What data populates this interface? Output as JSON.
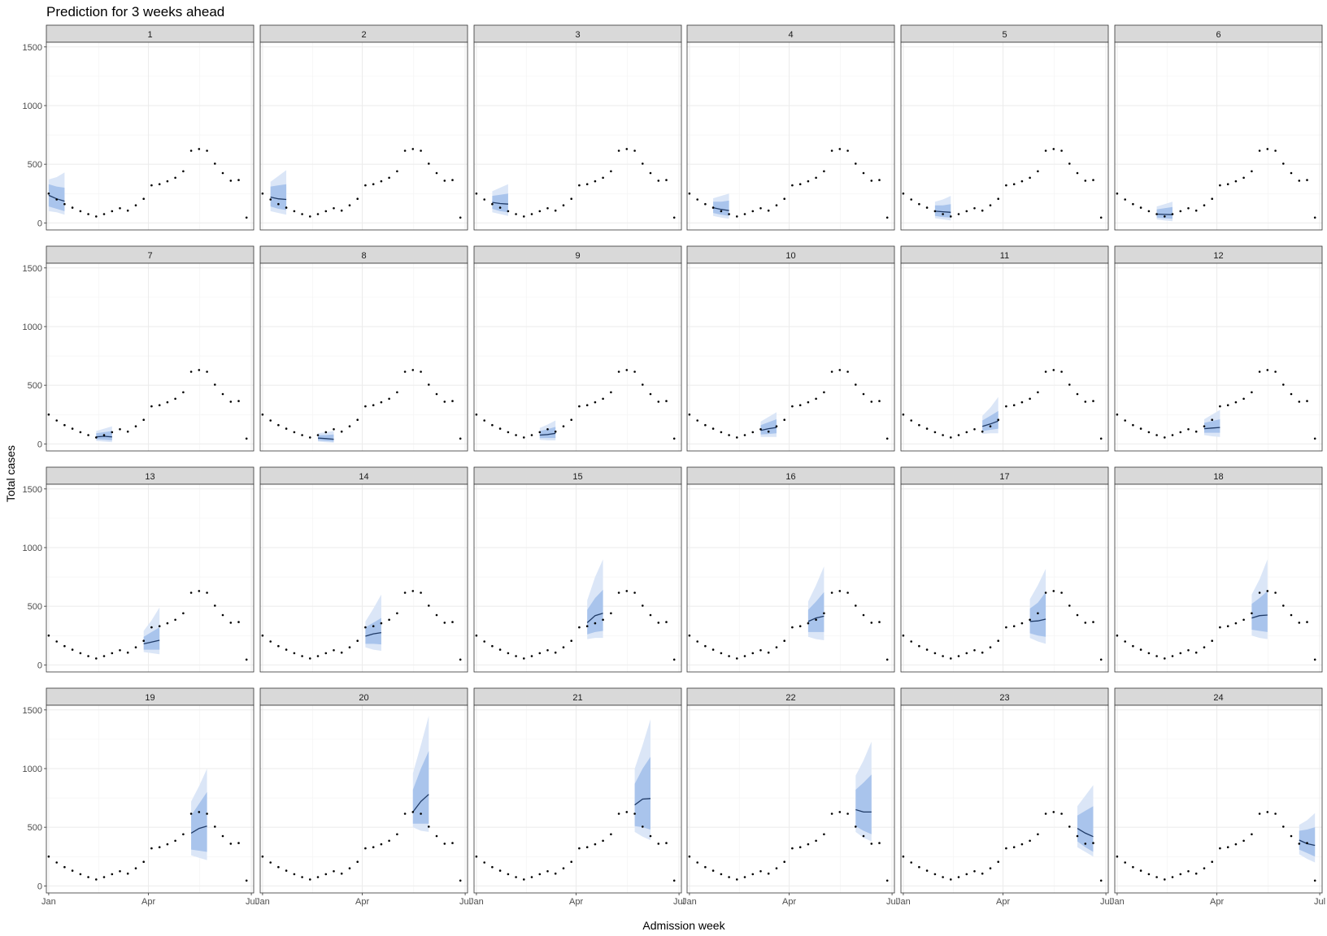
{
  "chart_data": {
    "type": "line",
    "title": "Prediction for 3 weeks ahead",
    "xlabel": "Admission week",
    "ylabel": "Total cases",
    "x_tick_labels": [
      "Jan",
      "Apr",
      "Jul"
    ],
    "x_ticks_week": [
      0,
      12.6,
      25.6
    ],
    "xlim_week": [
      -0.3,
      25.9
    ],
    "y_ticks": [
      0,
      500,
      1000,
      1500
    ],
    "ylim": [
      -60,
      1540
    ],
    "grid": true,
    "legend": "none",
    "colors": {
      "points": "#000000",
      "forecast_line": "#1f3a66",
      "inner_band": "#a9c4ec",
      "outer_band": "#dbe6f7",
      "strip_fill": "#d9d9d9",
      "panel_border": "#333333",
      "grid": "#ebebeb"
    },
    "observed": {
      "week": [
        0,
        1,
        2,
        3,
        4,
        5,
        6,
        7,
        8,
        9,
        10,
        11,
        12,
        13,
        14,
        15,
        16,
        17,
        18,
        19,
        20,
        21,
        22,
        23,
        24,
        25
      ],
      "cases": [
        250,
        200,
        160,
        130,
        100,
        75,
        55,
        75,
        100,
        125,
        105,
        150,
        205,
        320,
        330,
        355,
        385,
        440,
        615,
        630,
        615,
        505,
        425,
        360,
        365,
        45
      ]
    },
    "panels": [
      {
        "label": "1",
        "week": [
          0,
          1,
          2
        ],
        "median": [
          235,
          205,
          185
        ],
        "lo50": [
          140,
          120,
          100
        ],
        "hi50": [
          330,
          310,
          300
        ],
        "lo90": [
          100,
          90,
          70
        ],
        "hi90": [
          370,
          390,
          430
        ]
      },
      {
        "label": "2",
        "week": [
          1,
          2,
          3
        ],
        "median": [
          220,
          205,
          200
        ],
        "lo50": [
          140,
          120,
          110
        ],
        "hi50": [
          310,
          320,
          330
        ],
        "lo90": [
          100,
          85,
          70
        ],
        "hi90": [
          350,
          400,
          450
        ]
      },
      {
        "label": "3",
        "week": [
          2,
          3,
          4
        ],
        "median": [
          175,
          165,
          160
        ],
        "lo50": [
          120,
          100,
          90
        ],
        "hi50": [
          230,
          240,
          250
        ],
        "lo90": [
          90,
          75,
          60
        ],
        "hi90": [
          270,
          300,
          330
        ]
      },
      {
        "label": "4",
        "week": [
          3,
          4,
          5
        ],
        "median": [
          130,
          115,
          105
        ],
        "lo50": [
          85,
          70,
          60
        ],
        "hi50": [
          180,
          180,
          190
        ],
        "lo90": [
          60,
          45,
          35
        ],
        "hi90": [
          210,
          230,
          250
        ]
      },
      {
        "label": "5",
        "week": [
          4,
          5,
          6
        ],
        "median": [
          100,
          95,
          90
        ],
        "lo50": [
          60,
          50,
          45
        ],
        "hi50": [
          150,
          150,
          160
        ],
        "lo90": [
          40,
          30,
          20
        ],
        "hi90": [
          180,
          200,
          230
        ]
      },
      {
        "label": "6",
        "week": [
          5,
          6,
          7
        ],
        "median": [
          75,
          72,
          70
        ],
        "lo50": [
          45,
          40,
          35
        ],
        "hi50": [
          115,
          125,
          135
        ],
        "lo90": [
          30,
          20,
          15
        ],
        "hi90": [
          140,
          160,
          180
        ]
      },
      {
        "label": "7",
        "week": [
          6,
          7,
          8
        ],
        "median": [
          60,
          65,
          60
        ],
        "lo50": [
          40,
          35,
          30
        ],
        "hi50": [
          90,
          100,
          110
        ],
        "lo90": [
          25,
          20,
          15
        ],
        "hi90": [
          110,
          130,
          150
        ]
      },
      {
        "label": "8",
        "week": [
          7,
          8,
          9
        ],
        "median": [
          50,
          45,
          40
        ],
        "lo50": [
          30,
          25,
          20
        ],
        "hi50": [
          75,
          75,
          80
        ],
        "lo90": [
          20,
          15,
          10
        ],
        "hi90": [
          90,
          100,
          110
        ]
      },
      {
        "label": "9",
        "week": [
          8,
          9,
          10
        ],
        "median": [
          75,
          80,
          90
        ],
        "lo50": [
          50,
          50,
          50
        ],
        "hi50": [
          110,
          125,
          145
        ],
        "lo90": [
          35,
          30,
          30
        ],
        "hi90": [
          135,
          165,
          200
        ]
      },
      {
        "label": "10",
        "week": [
          9,
          10,
          11
        ],
        "median": [
          115,
          130,
          140
        ],
        "lo50": [
          80,
          85,
          90
        ],
        "hi50": [
          160,
          185,
          210
        ],
        "lo90": [
          60,
          60,
          60
        ],
        "hi90": [
          190,
          230,
          270
        ]
      },
      {
        "label": "11",
        "week": [
          10,
          11,
          12
        ],
        "median": [
          150,
          170,
          195
        ],
        "lo50": [
          110,
          120,
          130
        ],
        "hi50": [
          200,
          240,
          280
        ],
        "lo90": [
          85,
          90,
          90
        ],
        "hi90": [
          240,
          310,
          400
        ]
      },
      {
        "label": "12",
        "week": [
          11,
          12,
          13
        ],
        "median": [
          130,
          135,
          140
        ],
        "lo50": [
          95,
          95,
          95
        ],
        "hi50": [
          180,
          195,
          210
        ],
        "lo90": [
          75,
          65,
          60
        ],
        "hi90": [
          210,
          250,
          290
        ]
      },
      {
        "label": "13",
        "week": [
          12,
          13,
          14
        ],
        "median": [
          180,
          195,
          210
        ],
        "lo50": [
          130,
          130,
          130
        ],
        "hi50": [
          240,
          280,
          320
        ],
        "lo90": [
          110,
          100,
          90
        ],
        "hi90": [
          290,
          380,
          490
        ]
      },
      {
        "label": "14",
        "week": [
          13,
          14,
          15
        ],
        "median": [
          245,
          265,
          275
        ],
        "lo50": [
          180,
          180,
          175
        ],
        "hi50": [
          320,
          360,
          400
        ],
        "lo90": [
          150,
          130,
          120
        ],
        "hi90": [
          370,
          480,
          600
        ]
      },
      {
        "label": "15",
        "week": [
          14,
          15,
          16
        ],
        "median": [
          360,
          420,
          440
        ],
        "lo50": [
          260,
          280,
          290
        ],
        "hi50": [
          470,
          570,
          640
        ],
        "lo90": [
          220,
          230,
          230
        ],
        "hi90": [
          550,
          750,
          900
        ]
      },
      {
        "label": "16",
        "week": [
          15,
          16,
          17
        ],
        "median": [
          370,
          400,
          415
        ],
        "lo50": [
          280,
          280,
          280
        ],
        "hi50": [
          470,
          540,
          620
        ],
        "lo90": [
          240,
          220,
          210
        ],
        "hi90": [
          540,
          680,
          840
        ]
      },
      {
        "label": "17",
        "week": [
          16,
          17,
          18
        ],
        "median": [
          370,
          375,
          390
        ],
        "lo50": [
          270,
          250,
          240
        ],
        "hi50": [
          480,
          530,
          620
        ],
        "lo90": [
          230,
          200,
          180
        ],
        "hi90": [
          560,
          680,
          820
        ]
      },
      {
        "label": "18",
        "week": [
          17,
          18,
          19
        ],
        "median": [
          400,
          420,
          425
        ],
        "lo50": [
          300,
          290,
          280
        ],
        "hi50": [
          520,
          570,
          630
        ],
        "lo90": [
          250,
          230,
          220
        ],
        "hi90": [
          600,
          730,
          900
        ]
      },
      {
        "label": "19",
        "week": [
          18,
          19,
          20
        ],
        "median": [
          450,
          490,
          510
        ],
        "lo50": [
          310,
          300,
          290
        ],
        "hi50": [
          600,
          700,
          800
        ],
        "lo90": [
          260,
          240,
          220
        ],
        "hi90": [
          720,
          850,
          1000
        ]
      },
      {
        "label": "20",
        "week": [
          19,
          20,
          21
        ],
        "median": [
          630,
          720,
          780
        ],
        "lo50": [
          530,
          530,
          530
        ],
        "hi50": [
          820,
          1000,
          1150
        ],
        "lo90": [
          500,
          470,
          460
        ],
        "hi90": [
          960,
          1200,
          1450
        ]
      },
      {
        "label": "21",
        "week": [
          20,
          21,
          22
        ],
        "median": [
          690,
          740,
          745
        ],
        "lo50": [
          510,
          500,
          480
        ],
        "hi50": [
          870,
          1000,
          1100
        ],
        "lo90": [
          460,
          420,
          390
        ],
        "hi90": [
          1000,
          1200,
          1420
        ]
      },
      {
        "label": "22",
        "week": [
          21,
          22,
          23
        ],
        "median": [
          650,
          630,
          630
        ],
        "lo50": [
          510,
          470,
          440
        ],
        "hi50": [
          820,
          880,
          950
        ],
        "lo90": [
          460,
          410,
          380
        ],
        "hi90": [
          940,
          1070,
          1230
        ]
      },
      {
        "label": "23",
        "week": [
          22,
          23,
          24
        ],
        "median": [
          490,
          450,
          420
        ],
        "lo50": [
          380,
          330,
          290
        ],
        "hi50": [
          600,
          640,
          680
        ],
        "lo90": [
          330,
          290,
          250
        ],
        "hi90": [
          680,
          770,
          860
        ]
      },
      {
        "label": "24",
        "week": [
          23,
          24,
          25
        ],
        "median": [
          390,
          360,
          345
        ],
        "lo50": [
          310,
          280,
          250
        ],
        "hi50": [
          470,
          480,
          500
        ],
        "lo90": [
          270,
          230,
          200
        ],
        "hi90": [
          520,
          560,
          620
        ]
      }
    ]
  }
}
